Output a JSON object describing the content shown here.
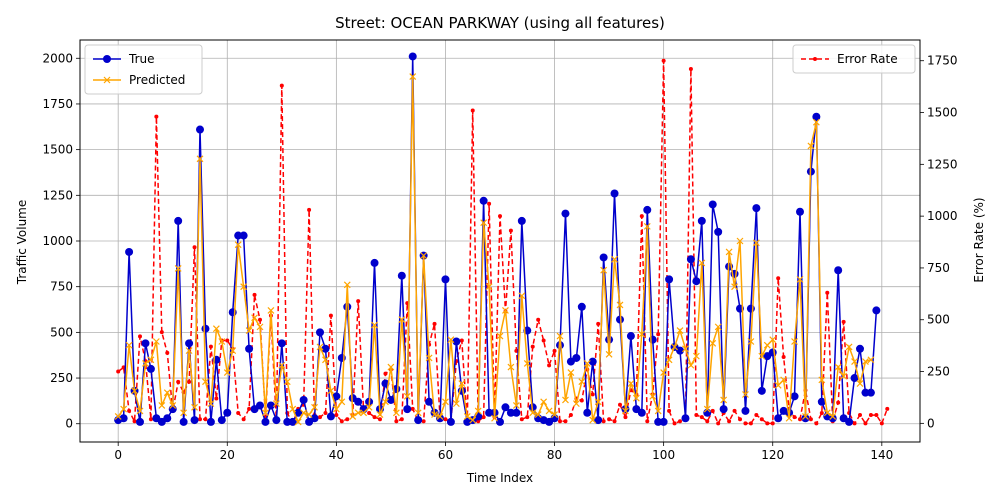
{
  "chart_data": {
    "type": "line",
    "title": "Street: OCEAN PARKWAY (using all features)",
    "xlabel": "Time Index",
    "ylabel": "Traffic Volume",
    "y2label": "Error Rate (%)",
    "xlim": [
      -7,
      147
    ],
    "ylim": [
      -100,
      2100
    ],
    "y2lim": [
      -90,
      1850
    ],
    "xticks": [
      0,
      20,
      40,
      60,
      80,
      100,
      120,
      140
    ],
    "yticks": [
      0,
      250,
      500,
      750,
      1000,
      1250,
      1500,
      1750,
      2000
    ],
    "y2ticks": [
      0,
      250,
      500,
      750,
      1000,
      1250,
      1500,
      1750
    ],
    "grid": true,
    "legend_left": "upper-left",
    "legend_right": "upper-right",
    "series": [
      {
        "name": "True",
        "axis": "left",
        "color": "#0000cc",
        "marker": "circle",
        "values": [
          20,
          30,
          940,
          180,
          10,
          440,
          300,
          30,
          10,
          30,
          80,
          1110,
          10,
          440,
          20,
          1610,
          520,
          10,
          350,
          20,
          60,
          610,
          1030,
          1030,
          410,
          80,
          100,
          10,
          100,
          20,
          440,
          10,
          10,
          60,
          130,
          10,
          30,
          500,
          410,
          40,
          150,
          360,
          640,
          140,
          120,
          80,
          120,
          880,
          80,
          220,
          130,
          190,
          810,
          80,
          2010,
          20,
          920,
          120,
          60,
          30,
          790,
          10,
          450,
          180,
          10,
          20,
          40,
          1220,
          60,
          60,
          10,
          90,
          60,
          60,
          1110,
          510,
          90,
          30,
          20,
          10,
          30,
          430,
          1150,
          340,
          360,
          640,
          60,
          340,
          20,
          910,
          460,
          1260,
          570,
          80,
          480,
          80,
          60,
          1170,
          460,
          10,
          10,
          790,
          420,
          400,
          30,
          900,
          780,
          1110,
          60,
          1200,
          1050,
          80,
          860,
          820,
          630,
          70,
          630,
          1180,
          180,
          370,
          390,
          30,
          70,
          60,
          150,
          1160,
          30,
          1380,
          1680,
          120,
          40,
          30,
          840,
          30,
          10,
          250,
          410,
          170,
          170,
          620
        ]
      },
      {
        "name": "Predicted",
        "axis": "left",
        "color": "#ffa500",
        "marker": "x",
        "values": [
          40,
          80,
          430,
          180,
          70,
          330,
          350,
          450,
          100,
          170,
          100,
          850,
          60,
          400,
          90,
          1450,
          230,
          110,
          520,
          450,
          280,
          400,
          980,
          750,
          510,
          580,
          530,
          60,
          620,
          110,
          320,
          230,
          80,
          10,
          60,
          50,
          90,
          420,
          350,
          180,
          80,
          120,
          760,
          40,
          60,
          60,
          90,
          540,
          50,
          120,
          310,
          60,
          570,
          150,
          1900,
          60,
          920,
          360,
          50,
          40,
          120,
          460,
          110,
          220,
          40,
          20,
          70,
          1100,
          750,
          30,
          480,
          620,
          310,
          100,
          700,
          330,
          60,
          50,
          120,
          70,
          50,
          480,
          130,
          280,
          110,
          230,
          330,
          20,
          120,
          840,
          380,
          900,
          650,
          70,
          220,
          140,
          490,
          1080,
          150,
          70,
          280,
          350,
          420,
          510,
          410,
          320,
          370,
          880,
          80,
          440,
          530,
          130,
          940,
          750,
          1000,
          160,
          450,
          990,
          370,
          430,
          460,
          210,
          240,
          30,
          450,
          790,
          40,
          1520,
          1650,
          240,
          60,
          40,
          310,
          260,
          420,
          340,
          220,
          340,
          350
        ]
      },
      {
        "name": "Error Rate",
        "axis": "right",
        "color": "#ff0000",
        "dashed": true,
        "values": [
          250,
          270,
          60,
          10,
          420,
          300,
          20,
          1480,
          440,
          340,
          60,
          200,
          150,
          200,
          850,
          20,
          20,
          370,
          120,
          400,
          400,
          360,
          50,
          20,
          70,
          620,
          500,
          30,
          520,
          10,
          1630,
          50,
          0,
          70,
          90,
          1030,
          40,
          30,
          50,
          520,
          40,
          10,
          20,
          40,
          590,
          60,
          50,
          30,
          20,
          240,
          260,
          10,
          20,
          580,
          70,
          10,
          10,
          380,
          480,
          30,
          20,
          10,
          300,
          400,
          10,
          1510,
          10,
          30,
          1060,
          30,
          1000,
          540,
          930,
          350,
          20,
          30,
          370,
          500,
          400,
          280,
          350,
          10,
          10,
          40,
          120,
          110,
          260,
          140,
          480,
          10,
          20,
          10,
          90,
          30,
          160,
          140,
          1000,
          10,
          140,
          430,
          1750,
          60,
          0,
          10,
          20,
          1710,
          40,
          30,
          10,
          60,
          0,
          50,
          10,
          60,
          20,
          0,
          0,
          40,
          20,
          0,
          0,
          700,
          320,
          70,
          30,
          20,
          160,
          20,
          0,
          50,
          630,
          10,
          100,
          490,
          50,
          0,
          40,
          0,
          40,
          40,
          0,
          70
        ]
      }
    ]
  }
}
